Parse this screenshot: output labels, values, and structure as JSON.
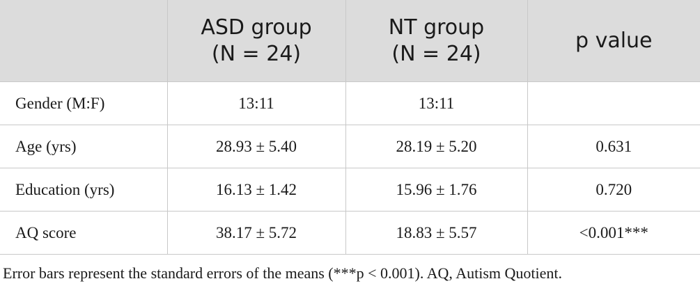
{
  "table": {
    "header": [
      [
        "ASD group",
        "(N = 24)"
      ],
      [
        "NT group",
        "(N = 24)"
      ],
      [
        "p value"
      ]
    ],
    "rows": [
      [
        "Gender (M:F)",
        "13:11",
        "13:11"
      ],
      [
        "Age (yrs)",
        "28.93 ± 5.40",
        "28.19 ± 5.20",
        "0.631"
      ],
      [
        "Education (yrs)",
        "16.13 ± 1.42",
        "15.96 ± 1.76",
        "0.720"
      ],
      [
        "AQ score",
        "38.17 ± 5.72",
        "18.83 ± 5.57",
        "<0.001***"
      ]
    ]
  },
  "footnote": "Error bars represent the standard errors of the means (***p < 0.001). AQ, Autism Quotient."
}
